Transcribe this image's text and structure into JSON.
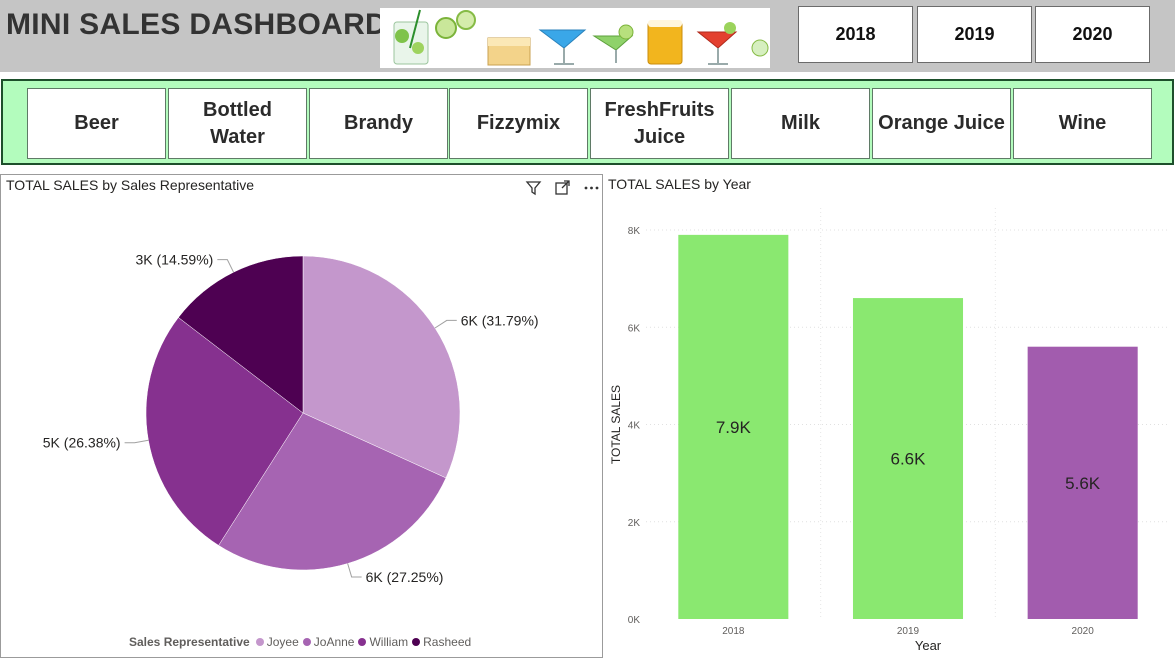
{
  "header": {
    "title": "MINI SALES DASHBOARD",
    "years": [
      "2018",
      "2019",
      "2020"
    ]
  },
  "products": [
    "Beer",
    "Bottled Water",
    "Brandy",
    "Fizzymix",
    "FreshFruits Juice",
    "Milk",
    "Orange Juice",
    "Wine"
  ],
  "pie_panel": {
    "title": "TOTAL SALES by Sales Representative",
    "icons": [
      "filter-icon",
      "focus-mode-icon",
      "more-options-icon"
    ],
    "legend_title": "Sales Representative"
  },
  "bar_panel": {
    "title": "TOTAL SALES by Year"
  },
  "chart_data": [
    {
      "type": "pie",
      "title": "TOTAL SALES by Sales Representative",
      "legend_title": "Sales Representative",
      "legend_position": "bottom",
      "slices": [
        {
          "name": "Joyee",
          "percent": 31.79,
          "label": "6K (31.79%)",
          "color": "#c497cc"
        },
        {
          "name": "JoAnne",
          "percent": 27.25,
          "label": "6K (27.25%)",
          "color": "#a664b2"
        },
        {
          "name": "William",
          "percent": 26.38,
          "label": "5K (26.38%)",
          "color": "#86318f"
        },
        {
          "name": "Rasheed",
          "percent": 14.59,
          "label": "3K (14.59%)",
          "color": "#4e0152"
        }
      ]
    },
    {
      "type": "bar",
      "title": "TOTAL SALES by Year",
      "xlabel": "Year",
      "ylabel": "TOTAL SALES",
      "categories": [
        "2018",
        "2019",
        "2020"
      ],
      "values": [
        7900,
        6600,
        5600
      ],
      "data_labels": [
        "7.9K",
        "6.6K",
        "5.6K"
      ],
      "colors": [
        "#8ae870",
        "#8ae870",
        "#a25cae"
      ],
      "ylim": [
        0,
        8000
      ],
      "yticks": [
        0,
        2000,
        4000,
        6000,
        8000
      ],
      "ytick_labels": [
        "0K",
        "2K",
        "4K",
        "6K",
        "8K"
      ],
      "grid": true
    }
  ]
}
